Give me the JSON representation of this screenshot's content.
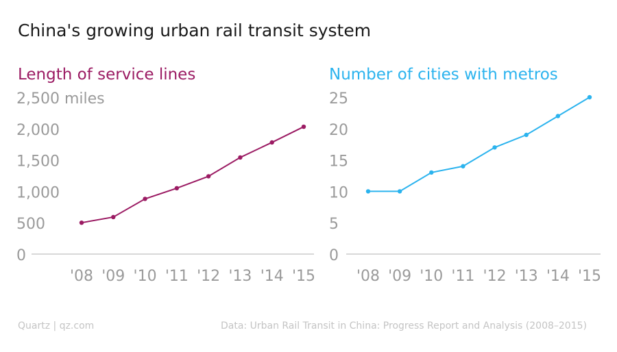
{
  "title": "China's growing urban rail transit system",
  "footer": {
    "credit": "Quartz | qz.com",
    "source": "Data: Urban Rail Transit in China: Progress Report and Analysis (2008–2015)"
  },
  "chart_data": [
    {
      "type": "line",
      "title": "Length of service lines",
      "color": "#9b1b63",
      "categories": [
        "'08",
        "'09",
        "'10",
        "'11",
        "'12",
        "'13",
        "'14",
        "'15"
      ],
      "values": [
        500,
        590,
        880,
        1050,
        1240,
        1540,
        1780,
        2030
      ],
      "yticks": [
        {
          "value": 0,
          "label": "0"
        },
        {
          "value": 500,
          "label": "500"
        },
        {
          "value": 1000,
          "label": "1,000"
        },
        {
          "value": 1500,
          "label": "1,500"
        },
        {
          "value": 2000,
          "label": "2,000"
        },
        {
          "value": 2500,
          "label": "2,500 miles"
        }
      ],
      "ylim": [
        0,
        2500
      ]
    },
    {
      "type": "line",
      "title": "Number of cities with metros",
      "color": "#2bb3ee",
      "categories": [
        "'08",
        "'09",
        "'10",
        "'11",
        "'12",
        "'13",
        "'14",
        "'15"
      ],
      "values": [
        10,
        10,
        13,
        14,
        17,
        19,
        22,
        25
      ],
      "yticks": [
        {
          "value": 0,
          "label": "0"
        },
        {
          "value": 5,
          "label": "5"
        },
        {
          "value": 10,
          "label": "10"
        },
        {
          "value": 15,
          "label": "15"
        },
        {
          "value": 20,
          "label": "20"
        },
        {
          "value": 25,
          "label": "25"
        }
      ],
      "ylim": [
        0,
        25
      ]
    }
  ]
}
